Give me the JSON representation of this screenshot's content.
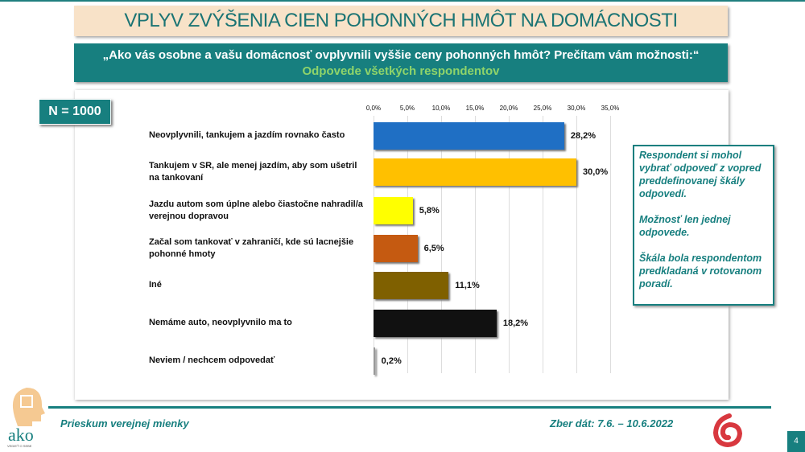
{
  "title": "VPLYV ZVÝŠENIA CIEN POHONNÝCH HMÔT NA DOMÁCNOSTI",
  "question": "„Ako vás osobne a vašu domácnosť ovplyvnili vyššie ceny pohonných hmôt? Prečítam vám možnosti:“",
  "subtitle": "Odpovede všetkých respondentov",
  "n_label": "N = 1000",
  "note": [
    "Respondent si mohol vybrať odpoveď z vopred preddefinovanej škály odpovedí.",
    "Možnosť len jednej odpovede.",
    "Škála bola respondentom predkladaná v rotovanom poradí."
  ],
  "footer": {
    "left": "Prieskum verejnej mienky",
    "right": "Zber dát: 7.6. – 10.6.2022",
    "page": "4",
    "logo_text": "ako",
    "logo_tagline": "VEDIEŤ O SEBE"
  },
  "chart_data": {
    "type": "bar",
    "orientation": "horizontal",
    "categories": [
      "Neovplyvnili, tankujem a jazdím rovnako často",
      "Tankujem v SR, ale menej jazdím, aby som ušetril na tankovaní",
      "Jazdu autom som úplne alebo čiastočne nahradil/a verejnou dopravou",
      "Začal som tankovať v zahraničí, kde sú lacnejšie pohonné hmoty",
      "Iné",
      "Nemáme auto, neovplyvnilo ma to",
      "Neviem / nechcem odpovedať"
    ],
    "values": [
      28.2,
      30.0,
      5.8,
      6.5,
      11.1,
      18.2,
      0.2
    ],
    "data_labels": [
      "28,2%",
      "30,0%",
      "5,8%",
      "6,5%",
      "11,1%",
      "18,2%",
      "0,2%"
    ],
    "colors": [
      "#1f6fc4",
      "#ffc000",
      "#ffff00",
      "#c55a11",
      "#7f6000",
      "#111111",
      "#999999"
    ],
    "xlim": [
      0,
      35
    ],
    "tick_labels": [
      "0,0%",
      "5,0%",
      "10,0%",
      "15,0%",
      "20,0%",
      "25,0%",
      "30,0%",
      "35,0%"
    ],
    "ticks": [
      0,
      5,
      10,
      15,
      20,
      25,
      30,
      35
    ],
    "grid": true,
    "axis_position": "top"
  }
}
